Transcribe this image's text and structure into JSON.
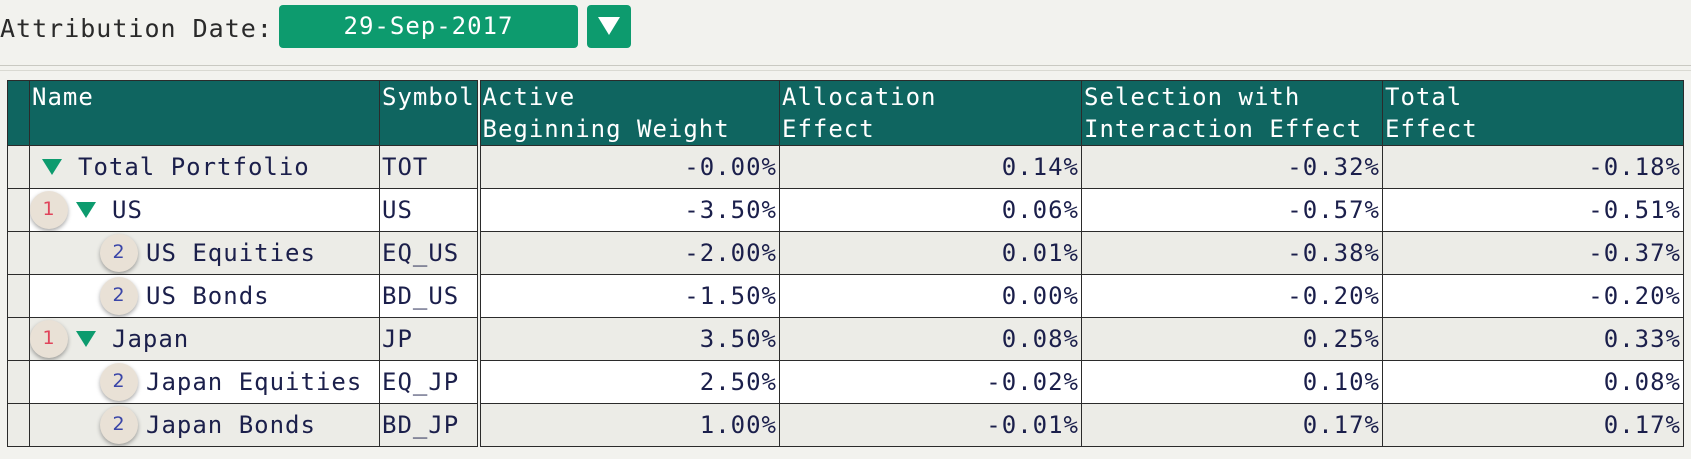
{
  "toolbar": {
    "attribution_label": "Attribution Date:",
    "attribution_date": "29-Sep-2017",
    "dropdown_icon": "triangle-down-icon"
  },
  "colors": {
    "accent": "#0d9b6e",
    "header_bg": "#0f6560",
    "text": "#1b1f4b",
    "level1_badge": "#e0445b",
    "level2_badge": "#3b46a8"
  },
  "table": {
    "headers": {
      "name": "Name",
      "symbol": "Symbol",
      "active": "Active\nBeginning Weight",
      "allocation": "Allocation\nEffect",
      "selection": "Selection with\nInteraction Effect",
      "total": "Total\nEffect"
    },
    "rows": [
      {
        "level": "",
        "expanded": true,
        "name": "Total Portfolio",
        "symbol": "TOT",
        "active": "-0.00%",
        "allocation": "0.14%",
        "selection": "-0.32%",
        "total": "-0.18%"
      },
      {
        "level": "1",
        "expanded": true,
        "name": "US",
        "symbol": "US",
        "active": "-3.50%",
        "allocation": "0.06%",
        "selection": "-0.57%",
        "total": "-0.51%"
      },
      {
        "level": "2",
        "expanded": false,
        "name": "US Equities",
        "symbol": "EQ_US",
        "active": "-2.00%",
        "allocation": "0.01%",
        "selection": "-0.38%",
        "total": "-0.37%"
      },
      {
        "level": "2",
        "expanded": false,
        "name": "US Bonds",
        "symbol": "BD_US",
        "active": "-1.50%",
        "allocation": "0.00%",
        "selection": "-0.20%",
        "total": "-0.20%"
      },
      {
        "level": "1",
        "expanded": true,
        "name": "Japan",
        "symbol": "JP",
        "active": "3.50%",
        "allocation": "0.08%",
        "selection": "0.25%",
        "total": "0.33%"
      },
      {
        "level": "2",
        "expanded": false,
        "name": "Japan Equities",
        "symbol": "EQ_JP",
        "active": "2.50%",
        "allocation": "-0.02%",
        "selection": "0.10%",
        "total": "0.08%"
      },
      {
        "level": "2",
        "expanded": false,
        "name": "Japan Bonds",
        "symbol": "BD_JP",
        "active": "1.00%",
        "allocation": "-0.01%",
        "selection": "0.17%",
        "total": "0.17%"
      }
    ]
  }
}
